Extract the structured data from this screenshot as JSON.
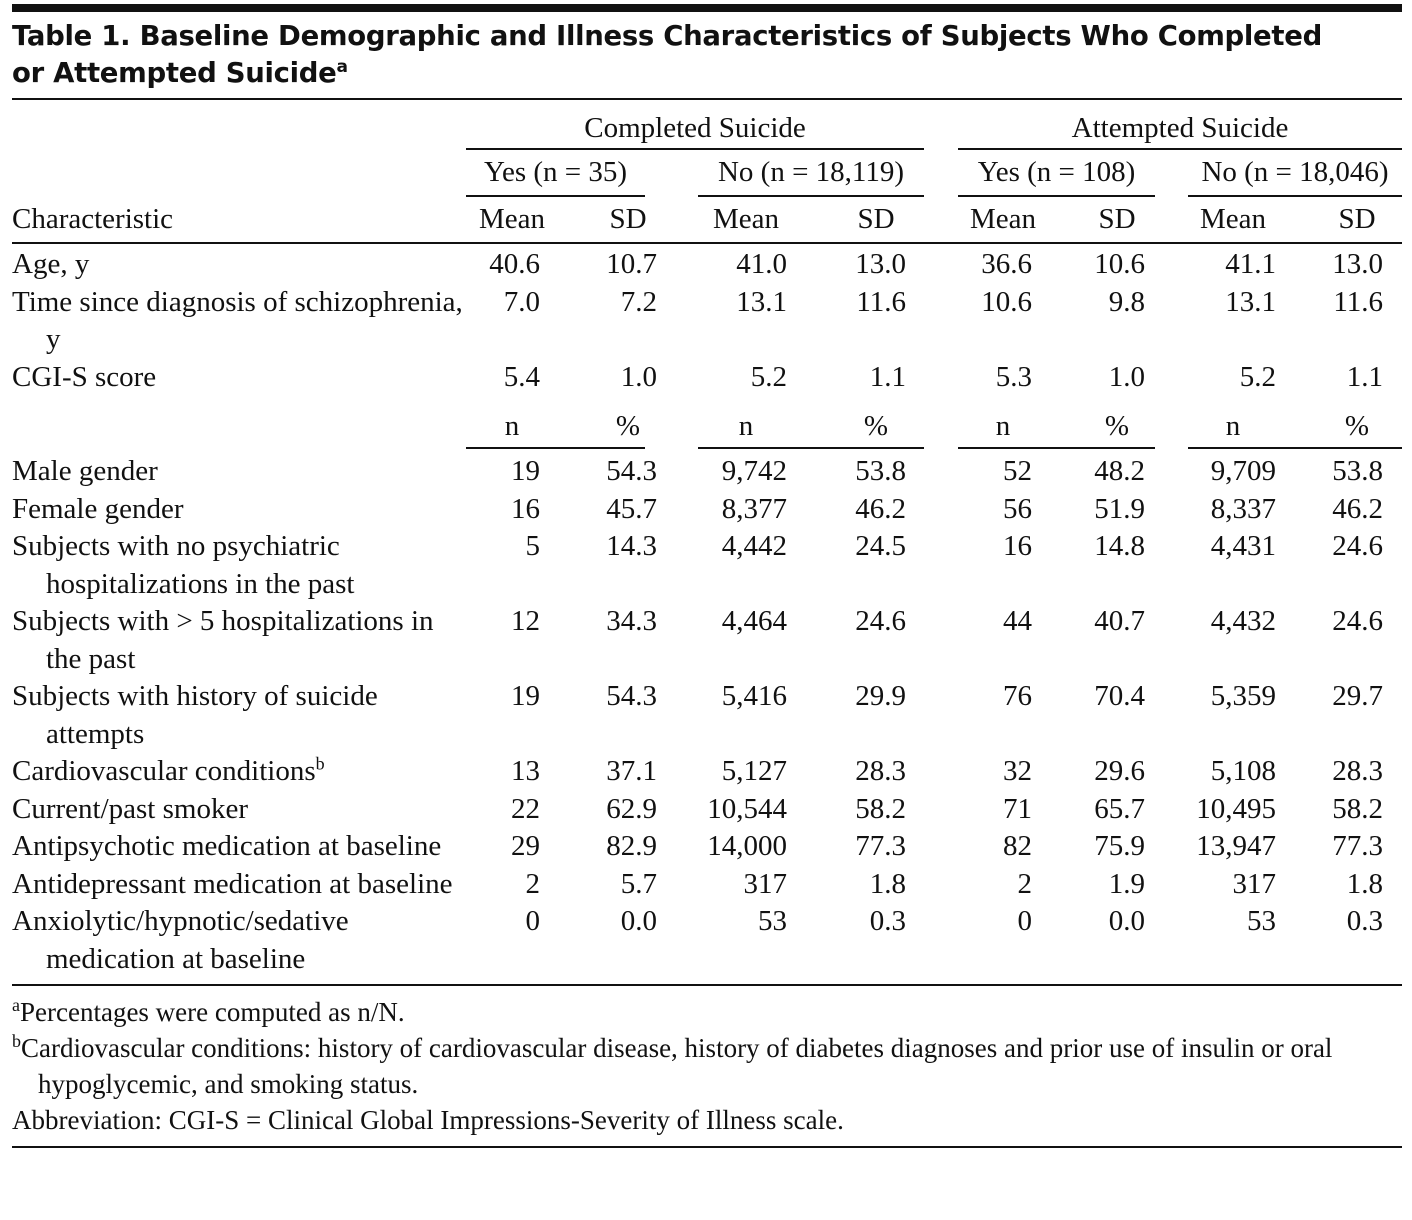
{
  "title": {
    "lines": [
      "Table 1. Baseline Demographic and Illness Characteristics of Subjects Who Completed",
      "or Attempted Suicide"
    ],
    "sup": "a"
  },
  "groups": [
    "Completed Suicide",
    "Attempted Suicide"
  ],
  "subgroups": [
    "Yes (n = 35)",
    "No (n = 18,119)",
    "Yes (n = 108)",
    "No (n = 18,046)"
  ],
  "stub_header": "Characteristic",
  "sections": [
    {
      "headers": [
        "Mean",
        "SD",
        "Mean",
        "SD",
        "Mean",
        "SD",
        "Mean",
        "SD"
      ],
      "rows": [
        {
          "label": "Age, y",
          "cells": [
            "40.6",
            "10.7",
            "41.0",
            "13.0",
            "36.6",
            "10.6",
            "41.1",
            "13.0"
          ]
        },
        {
          "label": "Time since diagnosis of schizophrenia, y",
          "cells": [
            "7.0",
            "7.2",
            "13.1",
            "11.6",
            "10.6",
            "9.8",
            "13.1",
            "11.6"
          ]
        },
        {
          "label": "CGI-S score",
          "cells": [
            "5.4",
            "1.0",
            "5.2",
            "1.1",
            "5.3",
            "1.0",
            "5.2",
            "1.1"
          ]
        }
      ]
    },
    {
      "headers": [
        "n",
        "%",
        "n",
        "%",
        "n",
        "%",
        "n",
        "%"
      ],
      "rows": [
        {
          "label": "Male gender",
          "cells": [
            "19",
            "54.3",
            "9,742",
            "53.8",
            "52",
            "48.2",
            "9,709",
            "53.8"
          ]
        },
        {
          "label": "Female gender",
          "cells": [
            "16",
            "45.7",
            "8,377",
            "46.2",
            "56",
            "51.9",
            "8,337",
            "46.2"
          ]
        },
        {
          "label": "Subjects with no psychiatric hospitalizations in the past",
          "cells": [
            "5",
            "14.3",
            "4,442",
            "24.5",
            "16",
            "14.8",
            "4,431",
            "24.6"
          ]
        },
        {
          "label": "Subjects with > 5 hospitalizations in the past",
          "cells": [
            "12",
            "34.3",
            "4,464",
            "24.6",
            "44",
            "40.7",
            "4,432",
            "24.6"
          ]
        },
        {
          "label": "Subjects with history of suicide attempts",
          "cells": [
            "19",
            "54.3",
            "5,416",
            "29.9",
            "76",
            "70.4",
            "5,359",
            "29.7"
          ]
        },
        {
          "label": "Cardiovascular conditions",
          "sup": "b",
          "cells": [
            "13",
            "37.1",
            "5,127",
            "28.3",
            "32",
            "29.6",
            "5,108",
            "28.3"
          ]
        },
        {
          "label": "Current/past smoker",
          "cells": [
            "22",
            "62.9",
            "10,544",
            "58.2",
            "71",
            "65.7",
            "10,495",
            "58.2"
          ]
        },
        {
          "label": "Antipsychotic medication at baseline",
          "cells": [
            "29",
            "82.9",
            "14,000",
            "77.3",
            "82",
            "75.9",
            "13,947",
            "77.3"
          ]
        },
        {
          "label": "Antidepressant medication at baseline",
          "cells": [
            "2",
            "5.7",
            "317",
            "1.8",
            "2",
            "1.9",
            "317",
            "1.8"
          ]
        },
        {
          "label": "Anxiolytic/hypnotic/sedative medication at baseline",
          "cells": [
            "0",
            "0.0",
            "53",
            "0.3",
            "0",
            "0.0",
            "53",
            "0.3"
          ]
        }
      ]
    }
  ],
  "footnotes": [
    {
      "mark": "a",
      "text": "Percentages were computed as n/N."
    },
    {
      "mark": "b",
      "text": "Cardiovascular conditions: history of cardiovascular disease, history of diabetes diagnoses and prior use of insulin or oral hypoglycemic, and smoking status."
    },
    {
      "text": "Abbreviation: CGI-S = Clinical Global Impressions-Severity of Illness scale."
    }
  ]
}
